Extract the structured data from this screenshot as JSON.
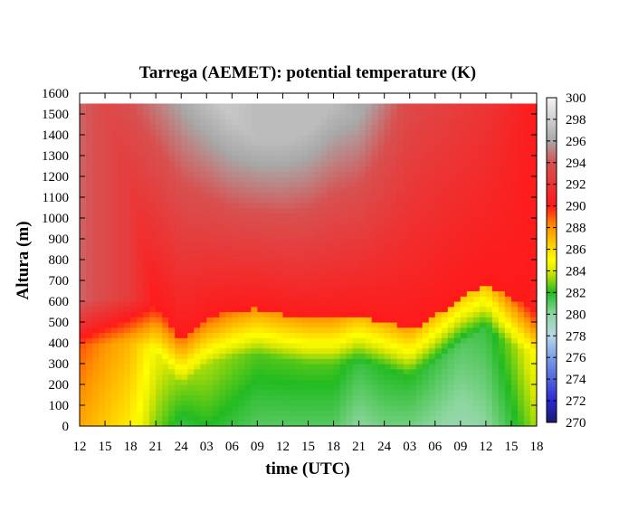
{
  "chart_data": {
    "type": "heatmap",
    "title": "Tarrega (AEMET): potential temperature (K)",
    "xlabel": "time (UTC)",
    "ylabel": "Altura (m)",
    "x_ticks": [
      "12",
      "15",
      "18",
      "21",
      "24",
      "03",
      "06",
      "09",
      "12",
      "15",
      "18",
      "21",
      "24",
      "03",
      "06",
      "09",
      "12",
      "15",
      "18"
    ],
    "y_ticks": [
      0,
      100,
      200,
      300,
      400,
      500,
      600,
      700,
      800,
      900,
      1000,
      1100,
      1200,
      1300,
      1400,
      1500,
      1600
    ],
    "ylim": [
      0,
      1600
    ],
    "data_top_m": 1550,
    "colorbar": {
      "min": 270,
      "max": 300,
      "ticks": [
        270,
        272,
        274,
        276,
        278,
        280,
        282,
        284,
        286,
        288,
        290,
        292,
        294,
        296,
        298,
        300
      ],
      "stops": [
        {
          "value": 270,
          "color": "#1a1a6e"
        },
        {
          "value": 272,
          "color": "#2a2ad0"
        },
        {
          "value": 276,
          "color": "#7aa0e8"
        },
        {
          "value": 278,
          "color": "#b8d8e6"
        },
        {
          "value": 280,
          "color": "#8ed6a0"
        },
        {
          "value": 282,
          "color": "#22bb22"
        },
        {
          "value": 284,
          "color": "#dde800"
        },
        {
          "value": 285,
          "color": "#ffff00"
        },
        {
          "value": 288,
          "color": "#ff9500"
        },
        {
          "value": 290,
          "color": "#ff1a1a"
        },
        {
          "value": 294,
          "color": "#d85050"
        },
        {
          "value": 296,
          "color": "#a8a8a8"
        },
        {
          "value": 298,
          "color": "#d0d0d0"
        },
        {
          "value": 300,
          "color": "#f4f4f4"
        }
      ]
    },
    "time_hours": [
      0,
      3,
      6,
      9,
      12,
      15,
      18,
      21,
      24,
      27,
      30,
      33,
      36,
      39,
      42,
      45,
      48,
      51,
      54
    ],
    "stable_layer_top_m": [
      380,
      395,
      400,
      360,
      190,
      300,
      330,
      345,
      320,
      300,
      300,
      305,
      285,
      240,
      310,
      390,
      470,
      390,
      340
    ],
    "surface_theta_K": [
      287.5,
      286.5,
      285.5,
      283,
      281.5,
      282,
      281.5,
      281,
      281,
      281,
      281,
      280,
      280.5,
      280.5,
      280,
      279.5,
      280,
      281.5,
      283.5
    ],
    "upper_theta_K": [
      293.5,
      293.5,
      294,
      295,
      296,
      297,
      298,
      298.5,
      298.5,
      298,
      297,
      296.5,
      295,
      293.5,
      293,
      292.5,
      292,
      291,
      290
    ]
  }
}
